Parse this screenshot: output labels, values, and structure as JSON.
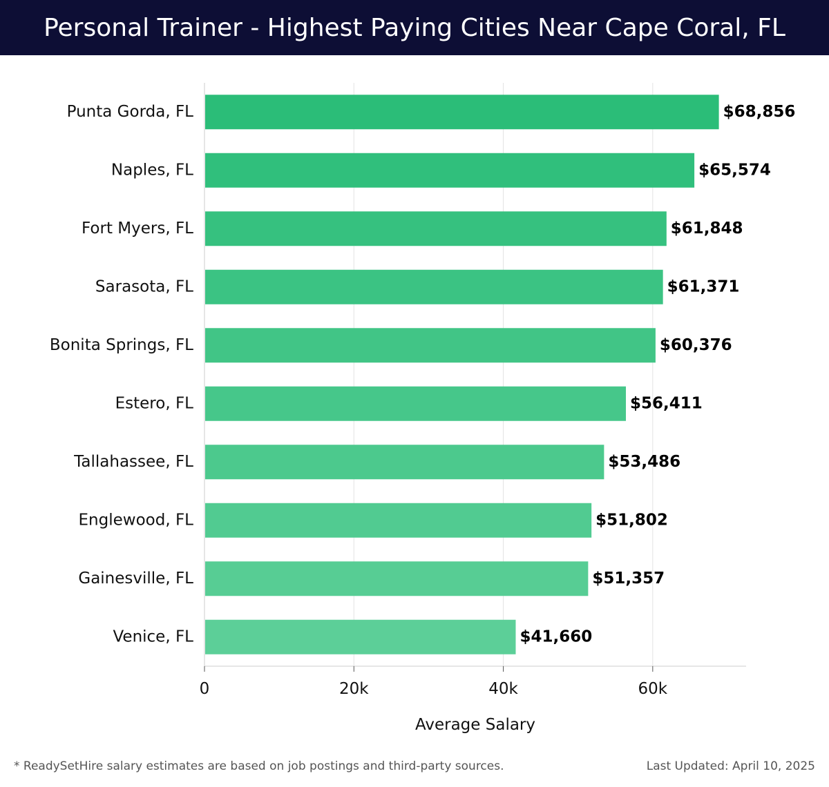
{
  "title": "Personal Trainer - Highest Paying Cities Near Cape Coral, FL",
  "footer": {
    "note": "* ReadySetHire salary estimates are based on job postings and third-party sources.",
    "updated": "Last Updated: April 10, 2025"
  },
  "colors": {
    "header_bg": "#0d0e35",
    "bar_dark": "#2bbd78",
    "bar_light": "#5ccf98",
    "grid": "#e3e3e3"
  },
  "chart_data": {
    "type": "bar",
    "orientation": "horizontal",
    "title": "Personal Trainer - Highest Paying Cities Near Cape Coral, FL",
    "xlabel": "Average Salary",
    "ylabel": "",
    "xlim": [
      0,
      72500
    ],
    "x_ticks": [
      0,
      20000,
      40000,
      60000
    ],
    "x_tick_labels": [
      "0",
      "20k",
      "40k",
      "60k"
    ],
    "grid": true,
    "categories": [
      "Punta Gorda, FL",
      "Naples, FL",
      "Fort Myers, FL",
      "Sarasota, FL",
      "Bonita Springs, FL",
      "Estero, FL",
      "Tallahassee, FL",
      "Englewood, FL",
      "Gainesville, FL",
      "Venice, FL"
    ],
    "values": [
      68856,
      65574,
      61848,
      61371,
      60376,
      56411,
      53486,
      51802,
      51357,
      41660
    ],
    "value_labels": [
      "$68,856",
      "$65,574",
      "$61,848",
      "$61,371",
      "$60,376",
      "$56,411",
      "$53,486",
      "$51,802",
      "$51,357",
      "$41,660"
    ]
  }
}
